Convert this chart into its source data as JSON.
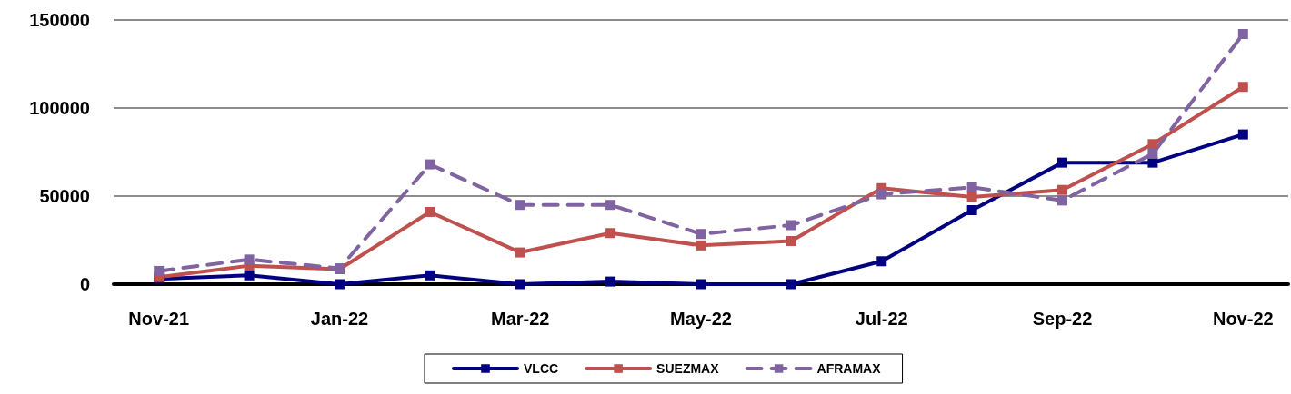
{
  "chart_data": {
    "type": "line",
    "categories": [
      "Nov-21",
      null,
      "Jan-22",
      null,
      "Mar-22",
      null,
      "May-22",
      null,
      "Jul-22",
      null,
      "Sep-22",
      null,
      "Nov-22"
    ],
    "series": [
      {
        "name": "VLCC",
        "color": "#000080",
        "values": [
          3000,
          5000,
          0,
          5000,
          0,
          1500,
          0,
          0,
          13000,
          42000,
          69000,
          69000,
          85000
        ]
      },
      {
        "name": "SUEZMAX",
        "color": "#c0504d",
        "values": [
          4000,
          10500,
          8500,
          41000,
          18000,
          29000,
          22000,
          24500,
          54500,
          49500,
          53500,
          79500,
          112000
        ]
      },
      {
        "name": "AFRAMAX",
        "color": "#8064a2",
        "line_style": "dashed",
        "values": [
          7500,
          14000,
          9000,
          68000,
          45000,
          45000,
          28500,
          33500,
          51000,
          55000,
          47500,
          74000,
          142000
        ]
      }
    ],
    "ylim": [
      0,
      150000
    ],
    "yticks": [
      0,
      50000,
      100000,
      150000
    ],
    "grid": "y",
    "legend": "bottom",
    "marker": "square",
    "line_style": "solid"
  }
}
